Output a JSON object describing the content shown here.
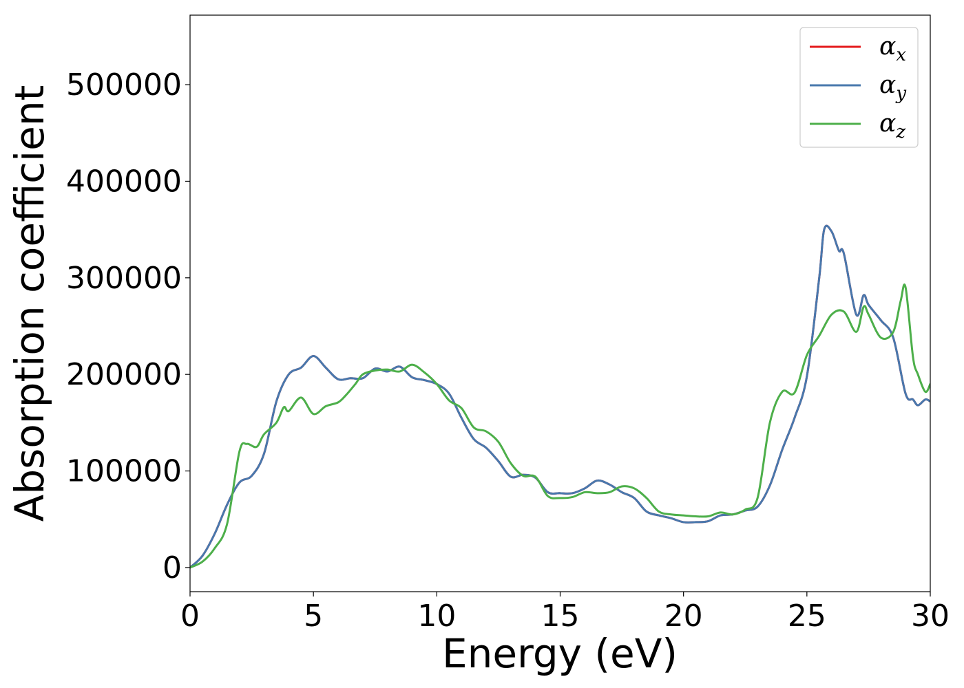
{
  "chart_data": {
    "type": "line",
    "xlabel": "Energy (eV)",
    "ylabel": "Absorption coefficient",
    "xlim": [
      0,
      30
    ],
    "ylim": [
      -25000,
      572000
    ],
    "xticks": [
      0,
      5,
      10,
      15,
      20,
      25,
      30
    ],
    "yticks": [
      0,
      100000,
      200000,
      300000,
      400000,
      500000
    ],
    "grid": false,
    "legend_position": "top-right",
    "series": [
      {
        "name": "α_x",
        "legend_symbol": "α",
        "legend_subscript": "x",
        "color": "#e41a1c",
        "x": [
          0,
          0.5,
          1,
          1.5,
          2,
          2.5,
          3,
          3.5,
          4,
          4.5,
          5,
          5.5,
          6,
          6.5,
          7,
          7.5,
          8,
          8.5,
          9,
          9.5,
          10,
          10.5,
          11,
          11.5,
          12,
          12.5,
          13,
          13.5,
          14,
          14.5,
          15,
          15.5,
          16,
          16.5,
          17,
          17.5,
          18,
          18.5,
          19,
          19.5,
          20,
          20.5,
          21,
          21.5,
          22,
          22.5,
          23,
          23.5,
          24,
          24.5,
          25,
          25.5,
          25.7,
          26,
          26.3,
          26.5,
          27,
          27.3,
          27.5,
          28,
          28.5,
          29,
          29.3,
          29.5,
          29.8,
          30
        ],
        "y": [
          0,
          12000,
          35000,
          65000,
          88000,
          95000,
          118000,
          172000,
          200000,
          207000,
          219000,
          207000,
          195000,
          196000,
          196000,
          206000,
          203000,
          208000,
          197000,
          194000,
          190000,
          180000,
          155000,
          133000,
          124000,
          110000,
          94000,
          96000,
          93000,
          78000,
          77000,
          77000,
          82000,
          90000,
          86000,
          78000,
          72000,
          58000,
          54000,
          51000,
          47000,
          47000,
          48000,
          54000,
          55000,
          59000,
          63000,
          85000,
          122000,
          155000,
          198000,
          300000,
          350000,
          348000,
          328000,
          325000,
          262000,
          282000,
          272000,
          256000,
          238000,
          180000,
          174000,
          168000,
          174000,
          172000
        ]
      },
      {
        "name": "α_y",
        "legend_symbol": "α",
        "legend_subscript": "y",
        "color": "#4878ad",
        "x": [
          0,
          0.5,
          1,
          1.5,
          2,
          2.5,
          3,
          3.5,
          4,
          4.5,
          5,
          5.5,
          6,
          6.5,
          7,
          7.5,
          8,
          8.5,
          9,
          9.5,
          10,
          10.5,
          11,
          11.5,
          12,
          12.5,
          13,
          13.5,
          14,
          14.5,
          15,
          15.5,
          16,
          16.5,
          17,
          17.5,
          18,
          18.5,
          19,
          19.5,
          20,
          20.5,
          21,
          21.5,
          22,
          22.5,
          23,
          23.5,
          24,
          24.5,
          25,
          25.5,
          25.7,
          26,
          26.3,
          26.5,
          27,
          27.3,
          27.5,
          28,
          28.5,
          29,
          29.3,
          29.5,
          29.8,
          30
        ],
        "y": [
          0,
          12000,
          35000,
          65000,
          88000,
          95000,
          118000,
          172000,
          200000,
          207000,
          219000,
          207000,
          195000,
          196000,
          196000,
          206000,
          203000,
          208000,
          197000,
          194000,
          190000,
          180000,
          155000,
          133000,
          124000,
          110000,
          94000,
          96000,
          93000,
          78000,
          77000,
          77000,
          82000,
          90000,
          86000,
          78000,
          72000,
          58000,
          54000,
          51000,
          47000,
          47000,
          48000,
          54000,
          55000,
          59000,
          63000,
          85000,
          122000,
          155000,
          198000,
          300000,
          350000,
          348000,
          328000,
          325000,
          262000,
          282000,
          272000,
          256000,
          238000,
          180000,
          174000,
          168000,
          174000,
          172000
        ]
      },
      {
        "name": "α_z",
        "legend_symbol": "α",
        "legend_subscript": "z",
        "color": "#4daf4a",
        "x": [
          0,
          0.5,
          1,
          1.5,
          2,
          2.3,
          2.7,
          3,
          3.5,
          3.8,
          4,
          4.5,
          5,
          5.5,
          6,
          6.3,
          6.7,
          7,
          7.5,
          8,
          8.5,
          9,
          9.5,
          10,
          10.5,
          11,
          11.5,
          12,
          12.5,
          13,
          13.5,
          14,
          14.5,
          15,
          15.5,
          16,
          16.5,
          17,
          17.5,
          18,
          18.5,
          19,
          19.5,
          20,
          20.5,
          21,
          21.5,
          22,
          22.5,
          23,
          23.5,
          24,
          24.5,
          25,
          25.5,
          26,
          26.5,
          27,
          27.3,
          27.5,
          28,
          28.5,
          28.8,
          29,
          29.3,
          29.5,
          29.8,
          30
        ],
        "y": [
          0,
          6000,
          20000,
          45000,
          120000,
          128000,
          125000,
          138000,
          150000,
          166000,
          162000,
          176000,
          159000,
          167000,
          171000,
          178000,
          190000,
          200000,
          204000,
          205000,
          203000,
          210000,
          202000,
          190000,
          173000,
          165000,
          145000,
          141000,
          130000,
          108000,
          95000,
          94000,
          74000,
          72000,
          73000,
          78000,
          77000,
          78000,
          84000,
          82000,
          72000,
          58000,
          55000,
          54000,
          53000,
          53000,
          57000,
          55000,
          60000,
          72000,
          150000,
          182000,
          181000,
          220000,
          240000,
          262000,
          265000,
          244000,
          270000,
          262000,
          238000,
          244000,
          276000,
          290000,
          218000,
          200000,
          182000,
          190000
        ]
      }
    ]
  }
}
